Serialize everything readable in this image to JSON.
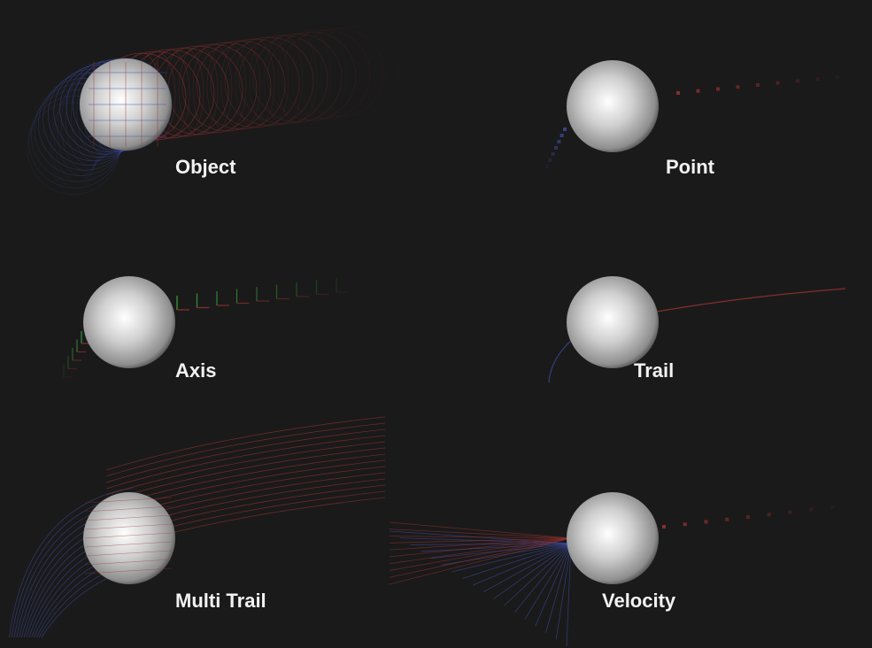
{
  "panels": {
    "object": {
      "label": "Object"
    },
    "point": {
      "label": "Point"
    },
    "axis": {
      "label": "Axis"
    },
    "trail": {
      "label": "Trail"
    },
    "multi_trail": {
      "label": "Multi Trail"
    },
    "velocity": {
      "label": "Velocity"
    }
  },
  "colors": {
    "background": "#1a1a1a",
    "trail_red": "#a03232",
    "trail_blue": "#3f4fa8",
    "axis_green": "#3fae3f",
    "label": "#f2f2f2"
  }
}
